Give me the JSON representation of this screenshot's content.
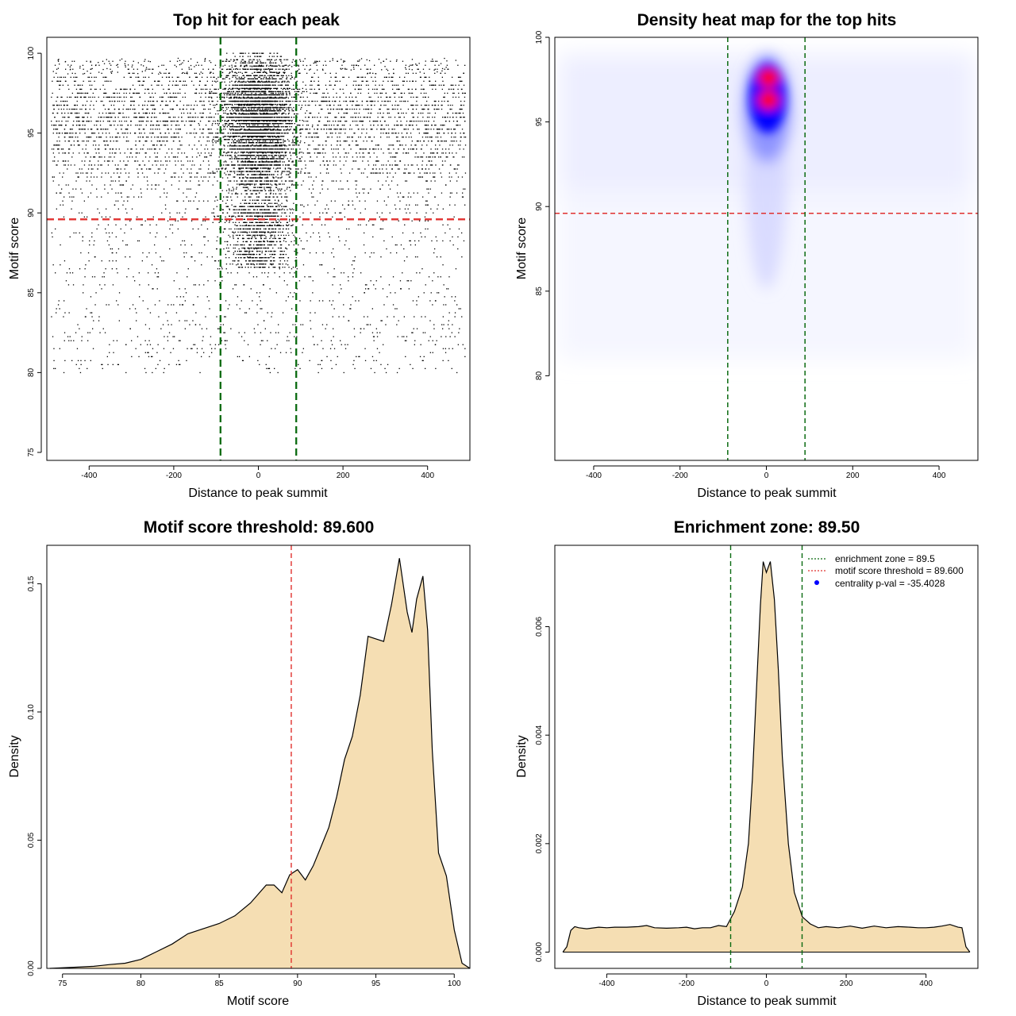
{
  "chart_data": [
    {
      "type": "scatter",
      "title": "Top hit for each peak",
      "xlabel": "Distance to peak summit",
      "ylabel": "Motif score",
      "xlim": [
        -500,
        500
      ],
      "ylim": [
        74.5,
        101
      ],
      "xticks": [
        -400,
        -200,
        0,
        200,
        400
      ],
      "yticks": [
        75,
        80,
        85,
        90,
        95,
        100
      ],
      "hlines": [
        {
          "value": 89.6,
          "color": "#e0302e",
          "style": "dashed"
        }
      ],
      "vlines": [
        {
          "value": -89.5,
          "color": "#0a6a10",
          "style": "dashed"
        },
        {
          "value": 89.5,
          "color": "#0a6a10",
          "style": "dashed"
        }
      ],
      "point_color": "#000000",
      "distribution": {
        "background_x_range": [
          -490,
          490
        ],
        "background_y_range": [
          76,
          100
        ],
        "background_mode_y": 96,
        "central_cluster": {
          "x_center": 0,
          "x_spread": 38,
          "y_center": 95.5,
          "y_range": [
            86.5,
            100
          ]
        }
      }
    },
    {
      "type": "heatmap",
      "title": "Density heat map for the top hits",
      "xlabel": "Distance to peak summit",
      "ylabel": "Motif score",
      "xlim": [
        -490,
        490
      ],
      "ylim": [
        75,
        100
      ],
      "xticks": [
        -400,
        -200,
        0,
        200,
        400
      ],
      "yticks": [
        80,
        85,
        90,
        95,
        100
      ],
      "hlines": [
        {
          "value": 89.6,
          "color": "#e0302e",
          "style": "dashed"
        }
      ],
      "vlines": [
        {
          "value": -89.5,
          "color": "#0a6a10",
          "style": "dashed"
        },
        {
          "value": 89.5,
          "color": "#0a6a10",
          "style": "dashed"
        }
      ],
      "colors": {
        "low": "#ffffff",
        "mid": "#0000ff",
        "high": "#ff0000"
      },
      "hotspots": [
        {
          "x": 5,
          "y": 97.6,
          "level": "high"
        },
        {
          "x": 5,
          "y": 96.3,
          "level": "high"
        },
        {
          "x": 0,
          "y": 95.5,
          "level": "mid"
        }
      ]
    },
    {
      "type": "area",
      "title": "Motif score threshold: 89.600",
      "xlabel": "Motif score",
      "ylabel": "Density",
      "xlim": [
        74,
        101
      ],
      "ylim": [
        0,
        0.165
      ],
      "xticks": [
        75,
        80,
        85,
        90,
        95,
        100
      ],
      "yticks": [
        0.0,
        0.05,
        0.1,
        0.15
      ],
      "ytick_labels": [
        "0.00",
        "0.05",
        "0.10",
        "0.15"
      ],
      "fill": "#f5deb3",
      "vlines": [
        {
          "value": 89.6,
          "color": "#e0302e",
          "style": "dashed"
        }
      ],
      "x": [
        74.2,
        76,
        77,
        78,
        79,
        80,
        81,
        82,
        83,
        84,
        85,
        86,
        87,
        88,
        88.5,
        89,
        89.5,
        90,
        90.5,
        91,
        91.5,
        92,
        92.5,
        93,
        93.5,
        94,
        94.5,
        95,
        95.5,
        96,
        96.5,
        97,
        97.3,
        97.6,
        98,
        98.3,
        98.6,
        99,
        99.5,
        100,
        100.5,
        101
      ],
      "y": [
        0.0,
        0.0005,
        0.0008,
        0.0015,
        0.002,
        0.0035,
        0.0065,
        0.0095,
        0.0135,
        0.0155,
        0.0175,
        0.0205,
        0.0255,
        0.0325,
        0.0325,
        0.0295,
        0.0365,
        0.0385,
        0.0345,
        0.04,
        0.0475,
        0.055,
        0.067,
        0.0815,
        0.0905,
        0.1065,
        0.1295,
        0.1285,
        0.1275,
        0.142,
        0.16,
        0.139,
        0.131,
        0.144,
        0.153,
        0.132,
        0.085,
        0.045,
        0.036,
        0.015,
        0.002,
        0.0
      ]
    },
    {
      "type": "area",
      "title": "Enrichment zone: 89.50",
      "xlabel": "Distance to peak summit",
      "ylabel": "Density",
      "xlim": [
        -530,
        530
      ],
      "ylim": [
        -0.0003,
        0.0075
      ],
      "xticks": [
        -400,
        -200,
        0,
        200,
        400
      ],
      "yticks": [
        0.0,
        0.002,
        0.004,
        0.006
      ],
      "ytick_labels": [
        "0.000",
        "0.002",
        "0.004",
        "0.006"
      ],
      "fill": "#f5deb3",
      "vlines": [
        {
          "value": -89.5,
          "color": "#0a6a10",
          "style": "dashed"
        },
        {
          "value": 89.5,
          "color": "#0a6a10",
          "style": "dashed"
        }
      ],
      "x": [
        -510,
        -500,
        -490,
        -480,
        -470,
        -450,
        -420,
        -400,
        -380,
        -350,
        -320,
        -300,
        -280,
        -250,
        -220,
        -200,
        -180,
        -160,
        -140,
        -120,
        -100,
        -80,
        -60,
        -45,
        -35,
        -25,
        -15,
        -8,
        0,
        5,
        10,
        20,
        30,
        40,
        55,
        70,
        90,
        110,
        130,
        150,
        180,
        210,
        240,
        270,
        300,
        330,
        360,
        380,
        400,
        420,
        440,
        460,
        480,
        490,
        500,
        510
      ],
      "y": [
        0.0,
        0.0001,
        0.0004,
        0.00047,
        0.00045,
        0.00043,
        0.00046,
        0.00045,
        0.00046,
        0.00046,
        0.00047,
        0.00049,
        0.00045,
        0.00044,
        0.00045,
        0.00046,
        0.00043,
        0.00045,
        0.00045,
        0.00049,
        0.00047,
        0.00075,
        0.0012,
        0.002,
        0.0032,
        0.0048,
        0.0064,
        0.0072,
        0.007,
        0.0071,
        0.0072,
        0.0065,
        0.0052,
        0.0036,
        0.002,
        0.0011,
        0.00065,
        0.00052,
        0.00045,
        0.00047,
        0.00045,
        0.00048,
        0.00044,
        0.00048,
        0.00045,
        0.00047,
        0.00046,
        0.00045,
        0.00045,
        0.00046,
        0.00048,
        0.00051,
        0.00046,
        0.00045,
        0.0001,
        0.0
      ],
      "legend": {
        "placement": "top-right",
        "entries": [
          {
            "label": "enrichment zone = 89.5",
            "color": "#0a6a10",
            "style": "dotted-line"
          },
          {
            "label": "motif score threshold = 89.600",
            "color": "#e0302e",
            "style": "dotted-line"
          },
          {
            "label": "centrality p-val = -35.4028",
            "color": "#0000ff",
            "style": "point"
          }
        ]
      }
    }
  ]
}
